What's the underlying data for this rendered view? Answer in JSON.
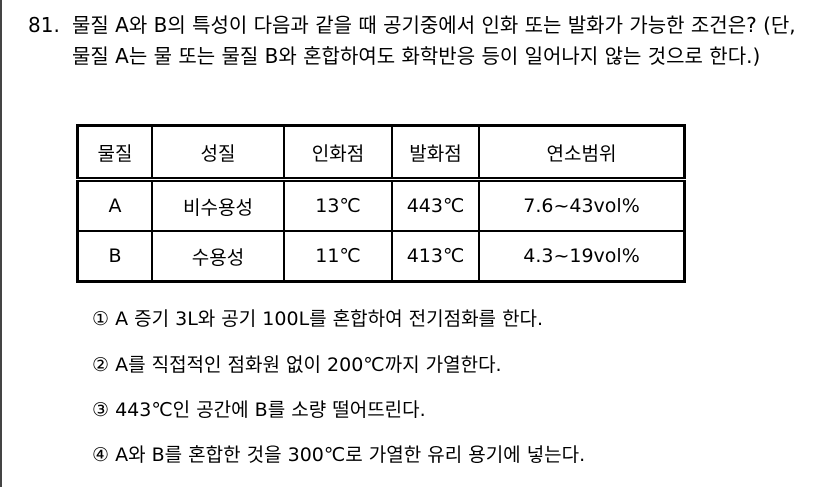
{
  "question": {
    "number": "81.",
    "text": "물질 A와 B의 특성이 다음과 같을 때 공기중에서 인화 또는 발화가 가능한 조건은? (단, 물질 A는 물 또는 물질 B와 혼합하여도 화학반응 등이 일어나지 않는 것으로 한다.)"
  },
  "table": {
    "headers": [
      "물질",
      "성질",
      "인화점",
      "발화점",
      "연소범위"
    ],
    "rows": [
      [
        "A",
        "비수용성",
        "13℃",
        "443℃",
        "7.6~43vol%"
      ],
      [
        "B",
        "수용성",
        "11℃",
        "413℃",
        "4.3~19vol%"
      ]
    ]
  },
  "options": [
    "① A 증기 3L와 공기 100L를 혼합하여 전기점화를 한다.",
    "② A를 직접적인 점화원 없이 200℃까지 가열한다.",
    "③ 443℃인 공간에 B를 소량 떨어뜨린다.",
    "④ A와 B를 혼합한 것을 300℃로 가열한 유리 용기에 넣는다."
  ]
}
